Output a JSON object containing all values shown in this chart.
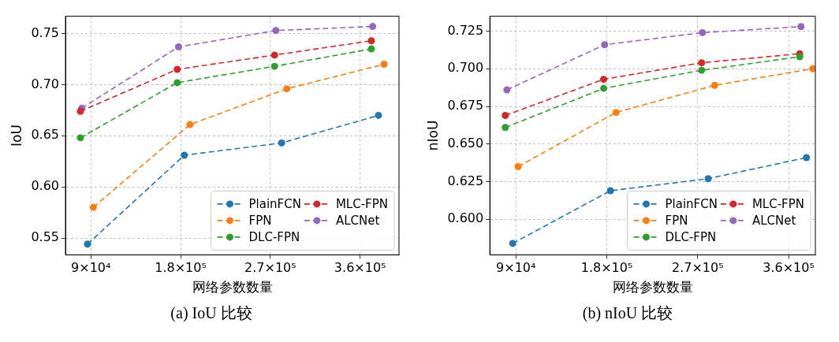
{
  "chart_data": [
    {
      "type": "line",
      "xlabel": "网络参数数量",
      "ylabel": "IoU",
      "annotations": [
        "(a) IoU 比较"
      ],
      "xlim": [
        64500,
        399000
      ],
      "xticks": [
        {
          "value": 90000,
          "label": "9×10⁴"
        },
        {
          "value": 180000,
          "label": "1.8×10⁵"
        },
        {
          "value": 270000,
          "label": "2.7×10⁵"
        },
        {
          "value": 360000,
          "label": "3.6×10⁵"
        }
      ],
      "ylim": [
        0.5335,
        0.767
      ],
      "yticks": [
        {
          "value": 0.55,
          "label": "0.55"
        },
        {
          "value": 0.6,
          "label": "0.60"
        },
        {
          "value": 0.65,
          "label": "0.65"
        },
        {
          "value": 0.7,
          "label": "0.70"
        },
        {
          "value": 0.75,
          "label": "0.75"
        }
      ],
      "grid": true,
      "legend": "bottom right",
      "marker": "circle",
      "line_style": "dashed",
      "series": [
        {
          "name": "PlainFCN",
          "color": "#1f77b4",
          "x": [
            86600,
            183700,
            281300,
            378400
          ],
          "values": [
            0.544,
            0.631,
            0.643,
            0.67
          ]
        },
        {
          "name": "FPN",
          "color": "#ff7f0e",
          "x": [
            92400,
            189400,
            286500,
            384100
          ],
          "values": [
            0.58,
            0.661,
            0.696,
            0.72
          ]
        },
        {
          "name": "DLC-FPN",
          "color": "#2ca02c",
          "x": [
            79500,
            176600,
            274200,
            371300
          ],
          "values": [
            0.648,
            0.702,
            0.718,
            0.735
          ]
        },
        {
          "name": "MLC-FPN",
          "color": "#d62728",
          "x": [
            79500,
            176600,
            274200,
            371300
          ],
          "values": [
            0.674,
            0.715,
            0.729,
            0.743
          ]
        },
        {
          "name": "ALCNet",
          "color": "#9467bd",
          "x": [
            80800,
            177900,
            275500,
            372600
          ],
          "values": [
            0.677,
            0.737,
            0.753,
            0.757
          ]
        }
      ]
    },
    {
      "type": "line",
      "xlabel": "网络参数数量",
      "ylabel": "nIoU",
      "annotations": [
        "(b) nIoU 比较"
      ],
      "xlim": [
        64200,
        386500
      ],
      "xticks": [
        {
          "value": 90000,
          "label": "9×10⁴"
        },
        {
          "value": 180000,
          "label": "1.8×10⁵"
        },
        {
          "value": 270000,
          "label": "2.7×10⁵"
        },
        {
          "value": 360000,
          "label": "3.6×10⁵"
        }
      ],
      "ylim": [
        0.5764,
        0.7349
      ],
      "yticks": [
        {
          "value": 0.6,
          "label": "0.600"
        },
        {
          "value": 0.625,
          "label": "0.625"
        },
        {
          "value": 0.65,
          "label": "0.650"
        },
        {
          "value": 0.675,
          "label": "0.675"
        },
        {
          "value": 0.7,
          "label": "0.700"
        },
        {
          "value": 0.725,
          "label": "0.725"
        }
      ],
      "grid": true,
      "legend": "bottom right",
      "marker": "circle",
      "line_style": "dashed",
      "series": [
        {
          "name": "PlainFCN",
          "color": "#1f77b4",
          "x": [
            86800,
            183600,
            280400,
            377700
          ],
          "values": [
            0.584,
            0.619,
            0.627,
            0.641
          ]
        },
        {
          "name": "FPN",
          "color": "#ff7f0e",
          "x": [
            92200,
            189200,
            286800,
            383900
          ],
          "values": [
            0.635,
            0.671,
            0.689,
            0.7
          ]
        },
        {
          "name": "DLC-FPN",
          "color": "#2ca02c",
          "x": [
            79500,
            176900,
            273900,
            371000
          ],
          "values": [
            0.661,
            0.687,
            0.699,
            0.708
          ]
        },
        {
          "name": "MLC-FPN",
          "color": "#d62728",
          "x": [
            79500,
            176900,
            273900,
            371000
          ],
          "values": [
            0.669,
            0.693,
            0.704,
            0.71
          ]
        },
        {
          "name": "ALCNet",
          "color": "#9467bd",
          "x": [
            81100,
            177900,
            274700,
            372300
          ],
          "values": [
            0.686,
            0.716,
            0.724,
            0.728
          ]
        }
      ]
    }
  ]
}
